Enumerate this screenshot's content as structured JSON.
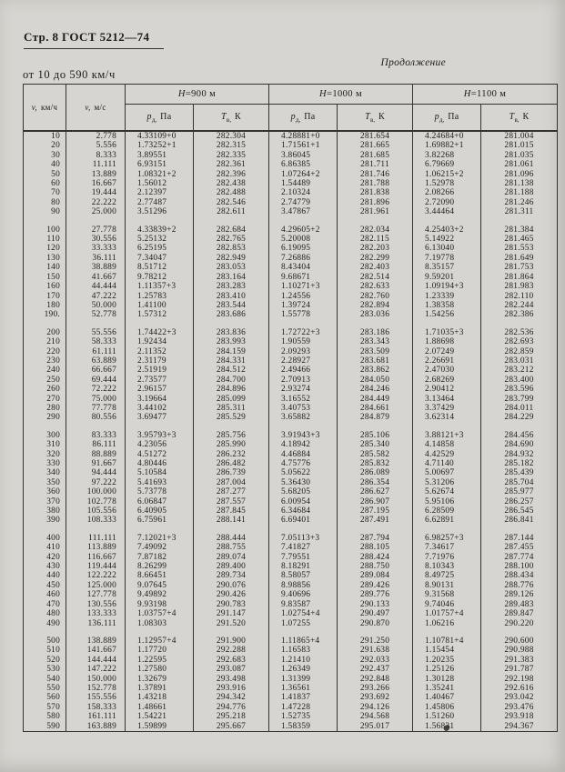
{
  "colors": {
    "paper": "#d7d5d1",
    "ink": "#1d1c1a",
    "line": "#35332f"
  },
  "page": {
    "header": "Стр. 8 ГОСТ 5212—74",
    "continuation": "Продолжение",
    "range_label": "от 10 до 590 км/ч"
  },
  "table": {
    "speed_kmh_header": {
      "symbol": "v,",
      "unit": "км/ч"
    },
    "speed_ms_header": {
      "symbol": "v,",
      "unit": "м/с"
    },
    "groups": [
      {
        "symbol": "H",
        "rest": "=900 м"
      },
      {
        "symbol": "H",
        "rest": "=1000 м"
      },
      {
        "symbol": "H",
        "rest": "=1100 м"
      }
    ],
    "pressure_header": {
      "symbol": "p",
      "subscript": "д,",
      "unit": "Па"
    },
    "temperature_header": {
      "symbol": "Т",
      "subscript": "в,",
      "unit": "К"
    },
    "blocks": [
      [
        [
          "10",
          "2.778",
          "4.33109+0",
          "282.304",
          "4.28881+0",
          "281.654",
          "4.24684+0",
          "281.004"
        ],
        [
          "20",
          "5.556",
          "1.73252+1",
          "282.315",
          "1.71561+1",
          "281.665",
          "1.69882+1",
          "281.015"
        ],
        [
          "30",
          "8.333",
          "3.89551",
          "282.335",
          "3.86045",
          "281.685",
          "3.82268",
          "281.035"
        ],
        [
          "40",
          "11.111",
          "6.93151",
          "282.361",
          "6.86385",
          "281.711",
          "6.79669",
          "281.061"
        ],
        [
          "50",
          "13.889",
          "1.08321+2",
          "282.396",
          "1.07264+2",
          "281.746",
          "1.06215+2",
          "281.096"
        ],
        [
          "60",
          "16.667",
          "1.56012",
          "282.438",
          "1.54489",
          "281.788",
          "1.52978",
          "281.138"
        ],
        [
          "70",
          "19.444",
          "2.12397",
          "282.488",
          "2.10324",
          "281.838",
          "2.08266",
          "281.188"
        ],
        [
          "80",
          "22.222",
          "2.77487",
          "282.546",
          "2.74779",
          "281.896",
          "2.72090",
          "281.246"
        ],
        [
          "90",
          "25.000",
          "3.51296",
          "282.611",
          "3.47867",
          "281.961",
          "3.44464",
          "281.311"
        ]
      ],
      [
        [
          "100",
          "27.778",
          "4.33839+2",
          "282.684",
          "4.29605+2",
          "282.034",
          "4.25403+2",
          "281.384"
        ],
        [
          "110",
          "30.556",
          "5.25132",
          "282.765",
          "5.20008",
          "282.115",
          "5.14922",
          "281.465"
        ],
        [
          "120",
          "33.333",
          "6.25195",
          "282.853",
          "6.19095",
          "282.203",
          "6.13040",
          "281.553"
        ],
        [
          "130",
          "36.111",
          "7.34047",
          "282.949",
          "7.26886",
          "282.299",
          "7.19778",
          "281.649"
        ],
        [
          "140",
          "38.889",
          "8.51712",
          "283.053",
          "8.43404",
          "282.403",
          "8.35157",
          "281.753"
        ],
        [
          "150",
          "41.667",
          "9.78212",
          "283.164",
          "9.68671",
          "282.514",
          "9.59201",
          "281.864"
        ],
        [
          "160",
          "44.444",
          "1.11357+3",
          "283.283",
          "1.10271+3",
          "282.633",
          "1.09194+3",
          "281.983"
        ],
        [
          "170",
          "47.222",
          "1.25783",
          "283.410",
          "1.24556",
          "282.760",
          "1.23339",
          "282.110"
        ],
        [
          "180",
          "50.000",
          "1.41100",
          "283.544",
          "1.39724",
          "282.894",
          "1.38358",
          "282.244"
        ],
        [
          "190.",
          "52.778",
          "1.57312",
          "283.686",
          "1.55778",
          "283.036",
          "1.54256",
          "282.386"
        ]
      ],
      [
        [
          "200",
          "55.556",
          "1.74422+3",
          "283.836",
          "1.72722+3",
          "283.186",
          "1.71035+3",
          "282.536"
        ],
        [
          "210",
          "58.333",
          "1.92434",
          "283.993",
          "1.90559",
          "283.343",
          "1.88698",
          "282.693"
        ],
        [
          "220",
          "61.111",
          "2.11352",
          "284.159",
          "2.09293",
          "283.509",
          "2.07249",
          "282.859"
        ],
        [
          "230",
          "63.889",
          "2.31179",
          "284.331",
          "2.28927",
          "283.681",
          "2.26691",
          "283.031"
        ],
        [
          "240",
          "66.667",
          "2.51919",
          "284.512",
          "2.49466",
          "283.862",
          "2.47030",
          "283.212"
        ],
        [
          "250",
          "69.444",
          "2.73577",
          "284.700",
          "2.70913",
          "284.050",
          "2.68269",
          "283.400"
        ],
        [
          "260",
          "72.222",
          "2.96157",
          "284.896",
          "2.93274",
          "284.246",
          "2.90412",
          "283.596"
        ],
        [
          "270",
          "75.000",
          "3.19664",
          "285.099",
          "3.16552",
          "284.449",
          "3.13464",
          "283.799"
        ],
        [
          "280",
          "77.778",
          "3.44102",
          "285.311",
          "3.40753",
          "284.661",
          "3.37429",
          "284.011"
        ],
        [
          "290",
          "80.556",
          "3.69477",
          "285.529",
          "3.65882",
          "284.879",
          "3.62314",
          "284.229"
        ]
      ],
      [
        [
          "300",
          "83.333",
          "3.95793+3",
          "285.756",
          "3.91943+3",
          "285.106",
          "3.88121+3",
          "284.456"
        ],
        [
          "310",
          "86.111",
          "4.23056",
          "285.990",
          "4.18942",
          "285.340",
          "4.14858",
          "284.690"
        ],
        [
          "320",
          "88.889",
          "4.51272",
          "286.232",
          "4.46884",
          "285.582",
          "4.42529",
          "284.932"
        ],
        [
          "330",
          "91.667",
          "4.80446",
          "286.482",
          "4.75776",
          "285.832",
          "4.71140",
          "285.182"
        ],
        [
          "340",
          "94.444",
          "5.10584",
          "286.739",
          "5.05622",
          "286.089",
          "5.00697",
          "285.439"
        ],
        [
          "350",
          "97.222",
          "5.41693",
          "287.004",
          "5.36430",
          "286.354",
          "5.31206",
          "285.704"
        ],
        [
          "360",
          "100.000",
          "5.73778",
          "287.277",
          "5.68205",
          "286.627",
          "5.62674",
          "285.977"
        ],
        [
          "370",
          "102.778",
          "6.06847",
          "287.557",
          "6.00954",
          "286.907",
          "5.95106",
          "286.257"
        ],
        [
          "380",
          "105.556",
          "6.40905",
          "287.845",
          "6.34684",
          "287.195",
          "6.28509",
          "286.545"
        ],
        [
          "390",
          "108.333",
          "6.75961",
          "288.141",
          "6.69401",
          "287.491",
          "6.62891",
          "286.841"
        ]
      ],
      [
        [
          "400",
          "111.111",
          "7.12021+3",
          "288.444",
          "7.05113+3",
          "287.794",
          "6.98257+3",
          "287.144"
        ],
        [
          "410",
          "113.889",
          "7.49092",
          "288.755",
          "7.41827",
          "288.105",
          "7.34617",
          "287.455"
        ],
        [
          "420",
          "116.667",
          "7.87182",
          "289.074",
          "7.79551",
          "288.424",
          "7.71976",
          "287.774"
        ],
        [
          "430",
          "119.444",
          "8.26299",
          "289.400",
          "8.18291",
          "288.750",
          "8.10343",
          "288.100"
        ],
        [
          "440",
          "122.222",
          "8.66451",
          "289.734",
          "8.58057",
          "289.084",
          "8.49725",
          "288.434"
        ],
        [
          "450",
          "125.000",
          "9.07645",
          "290.076",
          "8.98856",
          "289.426",
          "8.90131",
          "288.776"
        ],
        [
          "460",
          "127.778",
          "9.49892",
          "290.426",
          "9.40696",
          "289.776",
          "9.31568",
          "289.126"
        ],
        [
          "470",
          "130.556",
          "9.93198",
          "290.783",
          "9.83587",
          "290.133",
          "9.74046",
          "289.483"
        ],
        [
          "480",
          "133.333",
          "1.03757+4",
          "291.147",
          "1.02754+4",
          "290.497",
          "1.01757+4",
          "289.847"
        ],
        [
          "490",
          "136.111",
          "1.08303",
          "291.520",
          "1.07255",
          "290.870",
          "1.06216",
          "290.220"
        ]
      ],
      [
        [
          "500",
          "138.889",
          "1.12957+4",
          "291.900",
          "1.11865+4",
          "291.250",
          "1.10781+4",
          "290.600"
        ],
        [
          "510",
          "141.667",
          "1.17720",
          "292.288",
          "1.16583",
          "291.638",
          "1.15454",
          "290.988"
        ],
        [
          "520",
          "144.444",
          "1.22595",
          "292.683",
          "1.21410",
          "292.033",
          "1.20235",
          "291.383"
        ],
        [
          "530",
          "147.222",
          "1.27580",
          "293.087",
          "1.26349",
          "292.437",
          "1.25126",
          "291.787"
        ],
        [
          "540",
          "150.000",
          "1.32679",
          "293.498",
          "1.31399",
          "292.848",
          "1.30128",
          "292.198"
        ],
        [
          "550",
          "152.778",
          "1.37891",
          "293.916",
          "1.36561",
          "293.266",
          "1.35241",
          "292.616"
        ],
        [
          "560",
          "155.556",
          "1.43218",
          "294.342",
          "1.41837",
          "293.692",
          "1.40467",
          "293.042"
        ],
        [
          "570",
          "158.333",
          "1.48661",
          "294.776",
          "1.47228",
          "294.126",
          "1.45806",
          "293.476"
        ],
        [
          "580",
          "161.111",
          "1.54221",
          "295.218",
          "1.52735",
          "294.568",
          "1.51260",
          "293.918"
        ],
        [
          "590",
          "163.889",
          "1.59899",
          "295.667",
          "1.58359",
          "295.017",
          "1.56831",
          "294.367"
        ]
      ]
    ]
  }
}
